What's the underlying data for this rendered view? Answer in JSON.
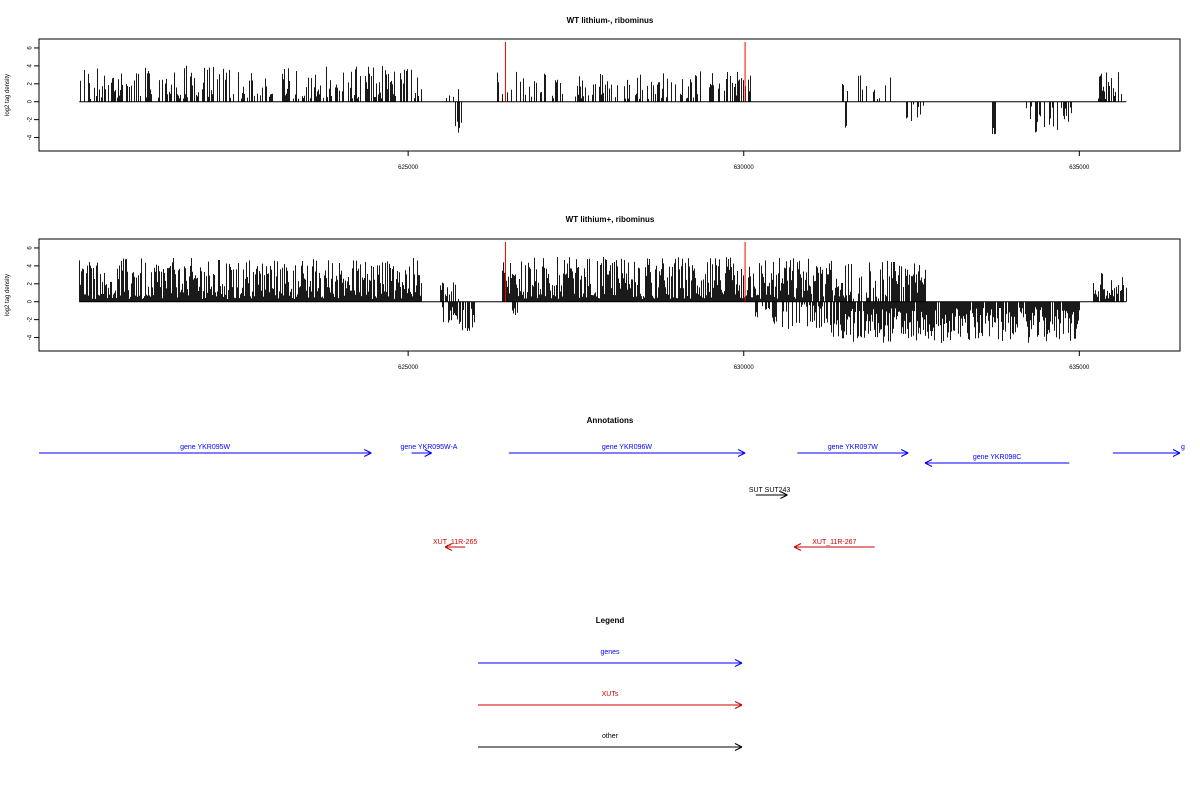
{
  "colors": {
    "axis": "#000000",
    "bars": "#000000",
    "marker": "#ff0000",
    "genes": "#0000ff",
    "xuts": "#cc0000",
    "other": "#000000"
  },
  "chart_data": [
    {
      "type": "bar",
      "title": "WT lithium-, ribominus",
      "ylabel": "log2 tag density",
      "ylim": [
        -5.5,
        7
      ],
      "xlim": [
        619500,
        636500
      ],
      "yticks": [
        -4,
        -2,
        0,
        2,
        4,
        6
      ],
      "ytick_labels": [
        "-4",
        "-2",
        "0",
        "2",
        "4",
        "6"
      ],
      "xticks": [
        625000,
        630000,
        635000
      ],
      "xtick_labels": [
        "625000",
        "630000",
        "635000"
      ],
      "data_range": [
        620100,
        635700
      ],
      "marker_x": [
        626450,
        630020
      ],
      "positive_segments": [
        {
          "from": 620100,
          "to": 625200,
          "mean": 1.7,
          "jitter": 2.4,
          "density": 0.55
        },
        {
          "from": 625550,
          "to": 625800,
          "mean": 1.0,
          "jitter": 1.2,
          "density": 0.4
        },
        {
          "from": 626300,
          "to": 629750,
          "mean": 1.6,
          "jitter": 1.8,
          "density": 0.4
        },
        {
          "from": 629750,
          "to": 630100,
          "mean": 2.0,
          "jitter": 1.4,
          "density": 0.6
        },
        {
          "from": 631450,
          "to": 632200,
          "mean": 1.7,
          "jitter": 1.4,
          "density": 0.35
        },
        {
          "from": 635250,
          "to": 635650,
          "mean": 1.6,
          "jitter": 1.8,
          "density": 0.6
        }
      ],
      "negative_segments": [
        {
          "from": 625700,
          "to": 625800,
          "mean": -2.8,
          "jitter": 1.0,
          "density": 0.6
        },
        {
          "from": 631500,
          "to": 631550,
          "mean": -3.0,
          "jitter": 0.5,
          "density": 0.8
        },
        {
          "from": 632400,
          "to": 632700,
          "mean": -1.6,
          "jitter": 1.4,
          "density": 0.4
        },
        {
          "from": 633700,
          "to": 633750,
          "mean": -3.3,
          "jitter": 0.4,
          "density": 0.8
        },
        {
          "from": 634200,
          "to": 634900,
          "mean": -2.0,
          "jitter": 1.6,
          "density": 0.35
        }
      ]
    },
    {
      "type": "bar",
      "title": "WT lithium+, ribominus",
      "ylabel": "log2 tag density",
      "ylim": [
        -5.5,
        7
      ],
      "xlim": [
        619500,
        636500
      ],
      "yticks": [
        -4,
        -2,
        0,
        2,
        4,
        6
      ],
      "ytick_labels": [
        "-4",
        "-2",
        "0",
        "2",
        "4",
        "6"
      ],
      "xticks": [
        625000,
        630000,
        635000
      ],
      "xtick_labels": [
        "625000",
        "630000",
        "635000"
      ],
      "data_range": [
        620100,
        635700
      ],
      "marker_x": [
        626450,
        630020
      ],
      "positive_segments": [
        {
          "from": 620100,
          "to": 625200,
          "mean": 2.3,
          "jitter": 2.6,
          "density": 1.0
        },
        {
          "from": 625450,
          "to": 625750,
          "mean": 1.2,
          "jitter": 1.2,
          "density": 0.5
        },
        {
          "from": 626400,
          "to": 631000,
          "mean": 2.4,
          "jitter": 2.6,
          "density": 1.0
        },
        {
          "from": 631000,
          "to": 632700,
          "mean": 2.2,
          "jitter": 2.4,
          "density": 0.8
        },
        {
          "from": 635200,
          "to": 635700,
          "mean": 1.6,
          "jitter": 1.8,
          "density": 0.8
        }
      ],
      "negative_segments": [
        {
          "from": 625500,
          "to": 626000,
          "mean": -2.0,
          "jitter": 1.4,
          "density": 0.7
        },
        {
          "from": 626550,
          "to": 626650,
          "mean": -1.0,
          "jitter": 0.5,
          "density": 0.6
        },
        {
          "from": 630100,
          "to": 631300,
          "mean": -1.6,
          "jitter": 1.5,
          "density": 0.5
        },
        {
          "from": 631300,
          "to": 635000,
          "mean": -2.6,
          "jitter": 2.0,
          "density": 0.95
        }
      ]
    }
  ],
  "annotations": {
    "title": "Annotations",
    "genes": [
      {
        "label": "gene YKR095W",
        "from": 619500,
        "to": 624450,
        "strand": "+"
      },
      {
        "label": "gene YKR095W-A",
        "from": 625050,
        "to": 625350,
        "strand": "+"
      },
      {
        "label": "gene YKR096W",
        "from": 626500,
        "to": 630020,
        "strand": "+"
      },
      {
        "label": "gene YKR097W",
        "from": 630800,
        "to": 632450,
        "strand": "+"
      },
      {
        "label": "gene YKR098C",
        "from": 632700,
        "to": 634850,
        "strand": "-"
      },
      {
        "label": "g",
        "from": 635500,
        "to": 636500,
        "strand": "+"
      }
    ],
    "other": [
      {
        "label": "SUT SUT243",
        "from": 630180,
        "to": 630650,
        "strand": "+"
      }
    ],
    "xuts": [
      {
        "label": "XUT_11R-265",
        "from": 625550,
        "to": 625850,
        "strand": "-"
      },
      {
        "label": "XUT_11R-267",
        "from": 630750,
        "to": 631950,
        "strand": "-"
      }
    ]
  },
  "legend": {
    "title": "Legend",
    "items": [
      {
        "label": "genes",
        "color_key": "genes"
      },
      {
        "label": "XUTs",
        "color_key": "xuts"
      },
      {
        "label": "other",
        "color_key": "other"
      }
    ]
  }
}
